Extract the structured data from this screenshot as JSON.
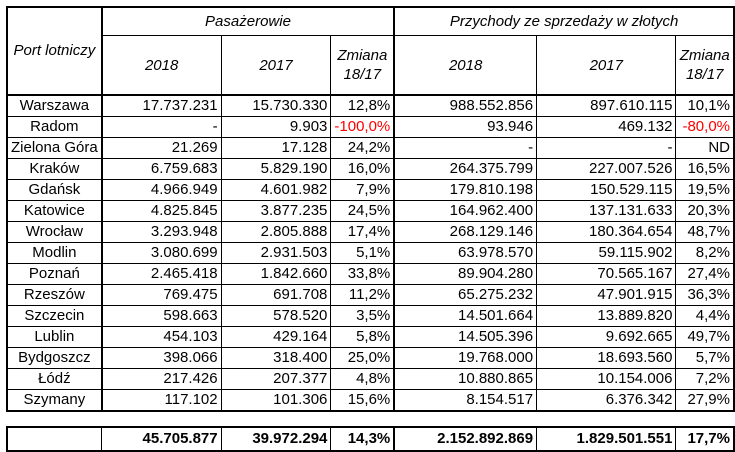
{
  "header": {
    "port": "Port lotniczy",
    "group_passengers": "Pasażerowie",
    "group_revenue": "Przychody ze sprzedaży w złotych",
    "col_2018": "2018",
    "col_2017": "2017",
    "col_change": "Zmiana 18/17"
  },
  "rows": [
    {
      "airport": "Warszawa",
      "pax2018": "17.737.231",
      "pax2017": "15.730.330",
      "paxChange": "12,8%",
      "rev2018": "988.552.856",
      "rev2017": "897.610.115",
      "revChange": "10,1%"
    },
    {
      "airport": "Radom",
      "pax2018": "-",
      "pax2017": "9.903",
      "paxChange": "-100,0%",
      "rev2018": "93.946",
      "rev2017": "469.132",
      "revChange": "-80,0%"
    },
    {
      "airport": "Zielona Góra",
      "pax2018": "21.269",
      "pax2017": "17.128",
      "paxChange": "24,2%",
      "rev2018": "-",
      "rev2017": "-",
      "revChange": "ND"
    },
    {
      "airport": "Kraków",
      "pax2018": "6.759.683",
      "pax2017": "5.829.190",
      "paxChange": "16,0%",
      "rev2018": "264.375.799",
      "rev2017": "227.007.526",
      "revChange": "16,5%"
    },
    {
      "airport": "Gdańsk",
      "pax2018": "4.966.949",
      "pax2017": "4.601.982",
      "paxChange": "7,9%",
      "rev2018": "179.810.198",
      "rev2017": "150.529.115",
      "revChange": "19,5%"
    },
    {
      "airport": "Katowice",
      "pax2018": "4.825.845",
      "pax2017": "3.877.235",
      "paxChange": "24,5%",
      "rev2018": "164.962.400",
      "rev2017": "137.131.633",
      "revChange": "20,3%"
    },
    {
      "airport": "Wrocław",
      "pax2018": "3.293.948",
      "pax2017": "2.805.888",
      "paxChange": "17,4%",
      "rev2018": "268.129.146",
      "rev2017": "180.364.654",
      "revChange": "48,7%"
    },
    {
      "airport": "Modlin",
      "pax2018": "3.080.699",
      "pax2017": "2.931.503",
      "paxChange": "5,1%",
      "rev2018": "63.978.570",
      "rev2017": "59.115.902",
      "revChange": "8,2%"
    },
    {
      "airport": "Poznań",
      "pax2018": "2.465.418",
      "pax2017": "1.842.660",
      "paxChange": "33,8%",
      "rev2018": "89.904.280",
      "rev2017": "70.565.167",
      "revChange": "27,4%"
    },
    {
      "airport": "Rzeszów",
      "pax2018": "769.475",
      "pax2017": "691.708",
      "paxChange": "11,2%",
      "rev2018": "65.275.232",
      "rev2017": "47.901.915",
      "revChange": "36,3%"
    },
    {
      "airport": "Szczecin",
      "pax2018": "598.663",
      "pax2017": "578.520",
      "paxChange": "3,5%",
      "rev2018": "14.501.664",
      "rev2017": "13.889.820",
      "revChange": "4,4%"
    },
    {
      "airport": "Lublin",
      "pax2018": "454.103",
      "pax2017": "429.164",
      "paxChange": "5,8%",
      "rev2018": "14.505.396",
      "rev2017": "9.692.665",
      "revChange": "49,7%"
    },
    {
      "airport": "Bydgoszcz",
      "pax2018": "398.066",
      "pax2017": "318.400",
      "paxChange": "25,0%",
      "rev2018": "19.768.000",
      "rev2017": "18.693.560",
      "revChange": "5,7%"
    },
    {
      "airport": "Łódź",
      "pax2018": "217.426",
      "pax2017": "207.377",
      "paxChange": "4,8%",
      "rev2018": "10.880.865",
      "rev2017": "10.154.006",
      "revChange": "7,2%"
    },
    {
      "airport": "Szymany",
      "pax2018": "117.102",
      "pax2017": "101.306",
      "paxChange": "15,6%",
      "rev2018": "8.154.517",
      "rev2017": "6.376.342",
      "revChange": "27,9%"
    }
  ],
  "totals": {
    "pax2018": "45.705.877",
    "pax2017": "39.972.294",
    "paxChange": "14,3%",
    "rev2018": "2.152.892.869",
    "rev2017": "1.829.501.551",
    "revChange": "17,7%"
  },
  "colors": {
    "negative": "#ff0000",
    "border": "#000000"
  }
}
